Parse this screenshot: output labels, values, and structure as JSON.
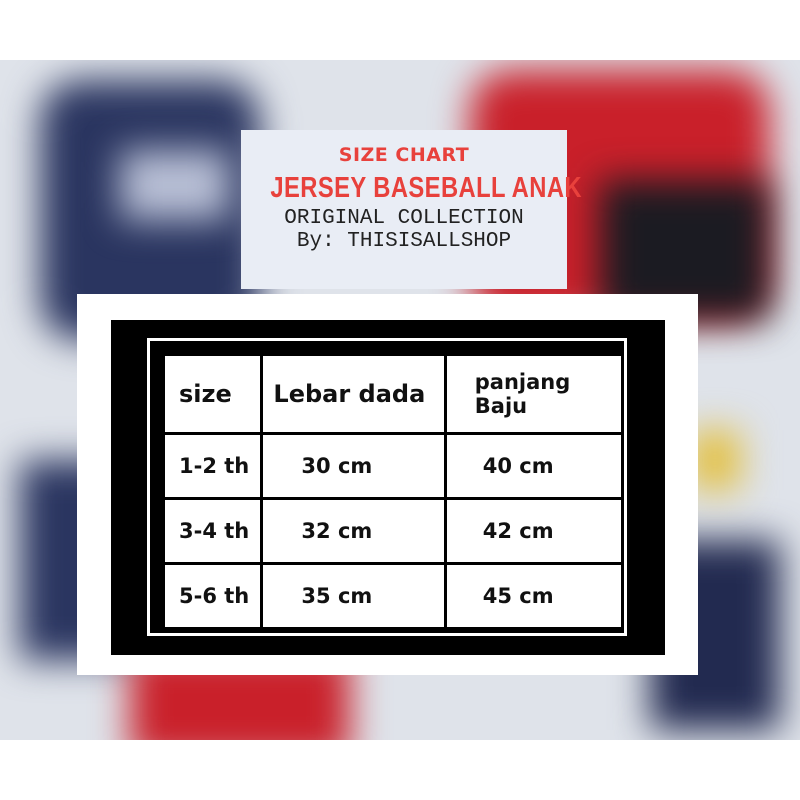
{
  "header": {
    "line1": "SIZE CHART",
    "line2": "JERSEY BASEBALL ANAK",
    "line3": "ORIGINAL COLLECTION",
    "line4": "By: THISISALLSHOP"
  },
  "colors": {
    "title_red": "#e8413c",
    "table_bg": "#000000",
    "cell_bg": "#ffffff"
  },
  "table": {
    "headers": [
      "size",
      "Lebar dada",
      "panjang Baju"
    ],
    "headers_col3_lines": [
      "panjang",
      "Baju"
    ],
    "rows": [
      [
        "1-2 th",
        "30 cm",
        "40 cm"
      ],
      [
        "3-4 th",
        "32 cm",
        "42 cm"
      ],
      [
        "5-6 th",
        "35 cm",
        "45 cm"
      ]
    ]
  }
}
